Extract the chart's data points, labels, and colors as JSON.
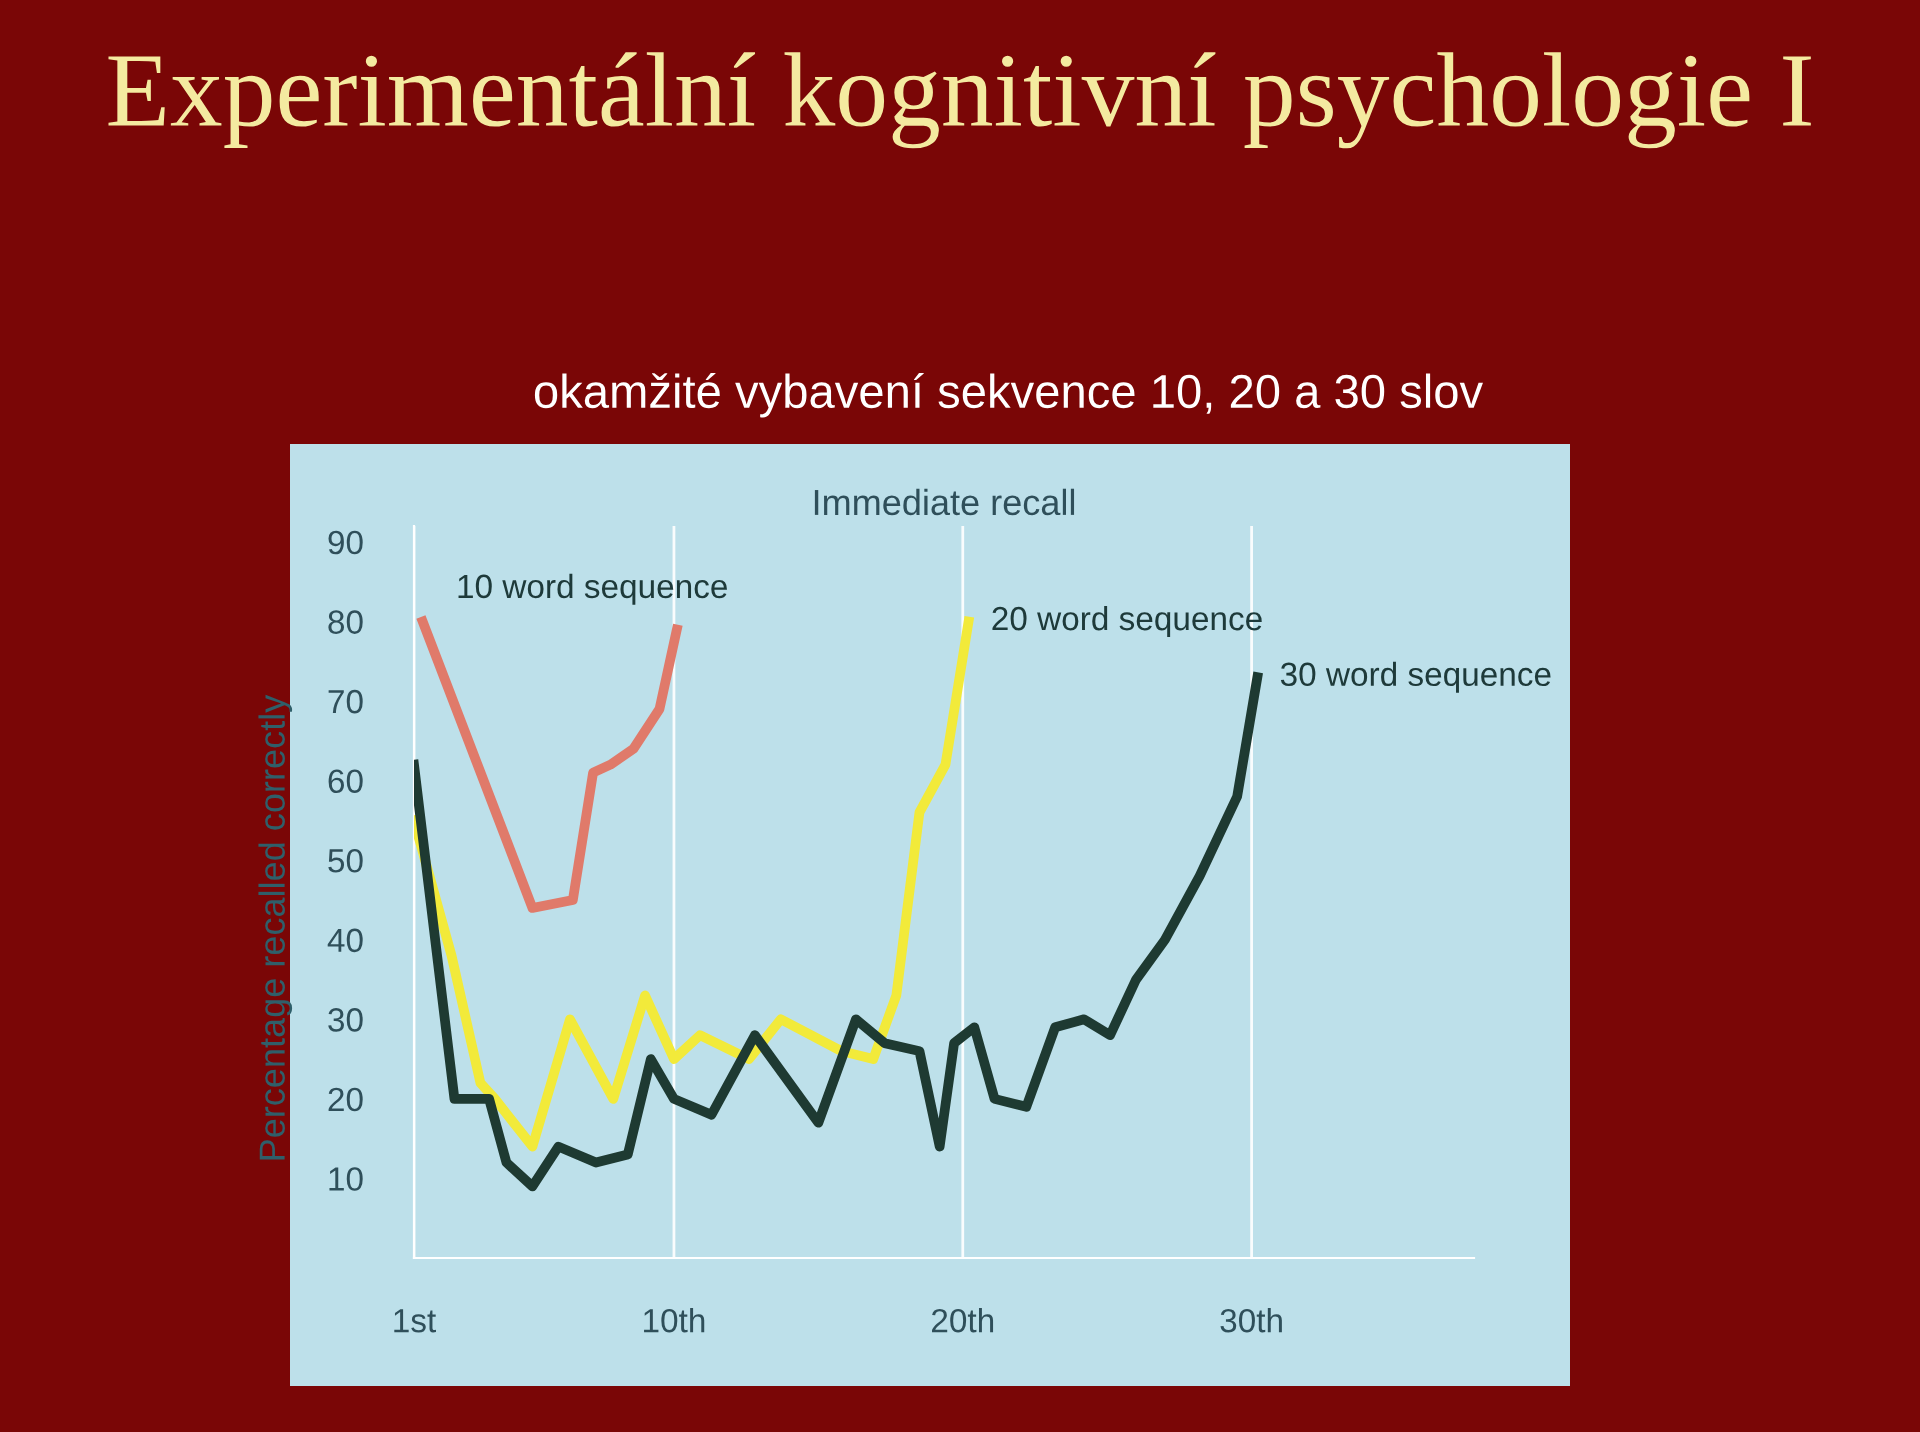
{
  "chart_data": {
    "type": "line",
    "title": "Immediate recall",
    "ylabel": "Percentage recalled correctly",
    "annotations": [
      "Experimentální kognitivní psychologie I",
      "okamžité vybavení sekvence 10, 20 a 30 slov"
    ],
    "xlim": [
      1,
      37.7
    ],
    "ylim": [
      0,
      92
    ],
    "xticks": [
      {
        "value": 1,
        "label": "1st"
      },
      {
        "value": 10,
        "label": "10th"
      },
      {
        "value": 20,
        "label": "20th"
      },
      {
        "value": 30,
        "label": "30th"
      }
    ],
    "yticks": [
      10,
      20,
      30,
      40,
      50,
      60,
      70,
      80,
      90
    ],
    "grid": "x",
    "legend": false,
    "marker": "none",
    "line_style": "solid",
    "series": [
      {
        "name": "10 word sequence",
        "color": "#e07a6a",
        "x": [
          1.3,
          5.1,
          6.5,
          7.2,
          7.8,
          8.6,
          9.5,
          10.1
        ],
        "values": [
          80,
          44,
          45,
          61,
          62,
          64,
          69,
          79
        ]
      },
      {
        "name": "20 word sequence",
        "color": "#f2ea3a",
        "x": [
          1,
          2.3,
          3.3,
          3.8,
          5.1,
          6.4,
          7.9,
          9,
          10,
          10.9,
          12.6,
          13.7,
          15.8,
          16.9,
          17.7,
          18.5,
          19.4,
          20.2
        ],
        "values": [
          55,
          38,
          22,
          20,
          14,
          30,
          20,
          33,
          25,
          28,
          25,
          30,
          26,
          25,
          33,
          56,
          62,
          80
        ]
      },
      {
        "name": "30 word sequence",
        "color": "#1e3a32",
        "x": [
          1,
          2.4,
          3.6,
          4.2,
          5.1,
          6,
          7.3,
          8.4,
          9.2,
          10,
          11.3,
          12.8,
          15,
          16.3,
          17.3,
          18.5,
          19.2,
          19.7,
          20.4,
          21.1,
          22.2,
          23.2,
          24.2,
          25.1,
          26,
          27,
          28.2,
          29.5,
          30.2
        ],
        "values": [
          62,
          20,
          20,
          12,
          9,
          14,
          12,
          13,
          25,
          20,
          18,
          28,
          17,
          30,
          27,
          26,
          14,
          27,
          29,
          20,
          19,
          29,
          30,
          28,
          35,
          40,
          48,
          58,
          73
        ]
      }
    ]
  }
}
